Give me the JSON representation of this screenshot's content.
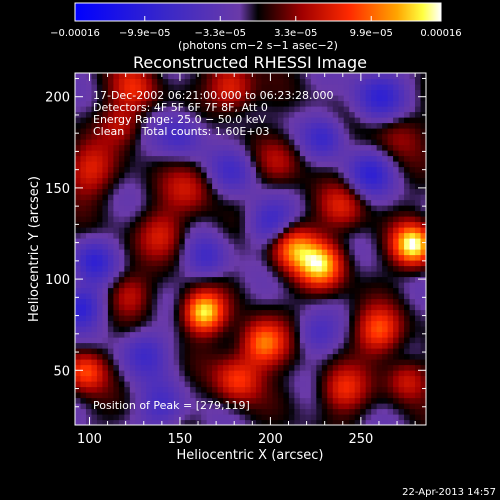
{
  "colorbar": {
    "ticks": [
      {
        "value": -0.00016,
        "label": "−0.00016"
      },
      {
        "value": -9.9e-05,
        "label": "−9.9e−05"
      },
      {
        "value": -3.3e-05,
        "label": "−3.3e−05"
      },
      {
        "value": 3.3e-05,
        "label": "3.3e−05"
      },
      {
        "value": 9.9e-05,
        "label": "9.9e−05"
      },
      {
        "value": 0.00016,
        "label": "0.00016"
      }
    ],
    "range": [
      -0.00016,
      0.00016
    ],
    "units": "(photons cm−2 s−1 asec−2)"
  },
  "chart_data": {
    "type": "heatmap",
    "title": "Reconstructed RHESSI Image",
    "xlabel": "Heliocentric X (arcsec)",
    "ylabel": "Heliocentric Y (arcsec)",
    "xlim": [
      92,
      286
    ],
    "ylim": [
      20,
      213
    ],
    "xticks": [
      100,
      150,
      200,
      250
    ],
    "yticks": [
      50,
      100,
      150,
      200
    ],
    "colormap": "rhessi-blue-purple-red-yellow-white",
    "annotations": {
      "time": "17-Dec-2002 06:21:00.000 to 06:23:28.000",
      "detectors": "Detectors: 4F 5F 6F 7F 8F, Att 0",
      "energy": "Energy Range: 25.0 − 50.0 keV",
      "clean": "Clean     Total counts: 1.60E+03",
      "peak": "Position of Peak = [279,119]"
    },
    "peak_position": [
      279,
      119
    ],
    "blobs": [
      {
        "x": 279,
        "y": 119,
        "amp": 1.0,
        "s": 8
      },
      {
        "x": 163,
        "y": 82,
        "amp": 0.95,
        "s": 8
      },
      {
        "x": 228,
        "y": 108,
        "amp": 0.85,
        "s": 9
      },
      {
        "x": 212,
        "y": 118,
        "amp": 0.7,
        "s": 9
      },
      {
        "x": 196,
        "y": 65,
        "amp": 0.75,
        "s": 9
      },
      {
        "x": 260,
        "y": 72,
        "amp": 0.6,
        "s": 9
      },
      {
        "x": 98,
        "y": 50,
        "amp": 0.6,
        "s": 8
      },
      {
        "x": 100,
        "y": 160,
        "amp": 0.45,
        "s": 10
      },
      {
        "x": 125,
        "y": 205,
        "amp": 0.45,
        "s": 9
      },
      {
        "x": 178,
        "y": 205,
        "amp": 0.55,
        "s": 9
      },
      {
        "x": 140,
        "y": 125,
        "amp": 0.4,
        "s": 9
      },
      {
        "x": 155,
        "y": 150,
        "amp": 0.35,
        "s": 10
      },
      {
        "x": 240,
        "y": 140,
        "amp": 0.4,
        "s": 9
      },
      {
        "x": 182,
        "y": 45,
        "amp": 0.55,
        "s": 9
      },
      {
        "x": 240,
        "y": 40,
        "amp": 0.5,
        "s": 9
      },
      {
        "x": 276,
        "y": 45,
        "amp": 0.45,
        "s": 8
      },
      {
        "x": 122,
        "y": 92,
        "amp": 0.35,
        "s": 8
      },
      {
        "x": 118,
        "y": 185,
        "amp": 0.35,
        "s": 8
      },
      {
        "x": 270,
        "y": 180,
        "amp": 0.3,
        "s": 10
      },
      {
        "x": 205,
        "y": 165,
        "amp": 0.3,
        "s": 9
      },
      {
        "x": 95,
        "y": 85,
        "amp": -0.55,
        "s": 8
      },
      {
        "x": 102,
        "y": 110,
        "amp": -0.45,
        "s": 8
      },
      {
        "x": 260,
        "y": 200,
        "amp": -0.5,
        "s": 10
      },
      {
        "x": 150,
        "y": 180,
        "amp": -0.4,
        "s": 9
      },
      {
        "x": 200,
        "y": 130,
        "amp": -0.45,
        "s": 9
      },
      {
        "x": 255,
        "y": 158,
        "amp": -0.45,
        "s": 9
      },
      {
        "x": 130,
        "y": 60,
        "amp": -0.4,
        "s": 9
      },
      {
        "x": 230,
        "y": 178,
        "amp": -0.4,
        "s": 8
      },
      {
        "x": 180,
        "y": 160,
        "amp": -0.35,
        "s": 9
      },
      {
        "x": 140,
        "y": 30,
        "amp": -0.35,
        "s": 9
      },
      {
        "x": 225,
        "y": 70,
        "amp": -0.3,
        "s": 8
      },
      {
        "x": 165,
        "y": 112,
        "amp": -0.35,
        "s": 8
      }
    ]
  },
  "footer": {
    "date": "22-Apr-2013 14:57"
  }
}
